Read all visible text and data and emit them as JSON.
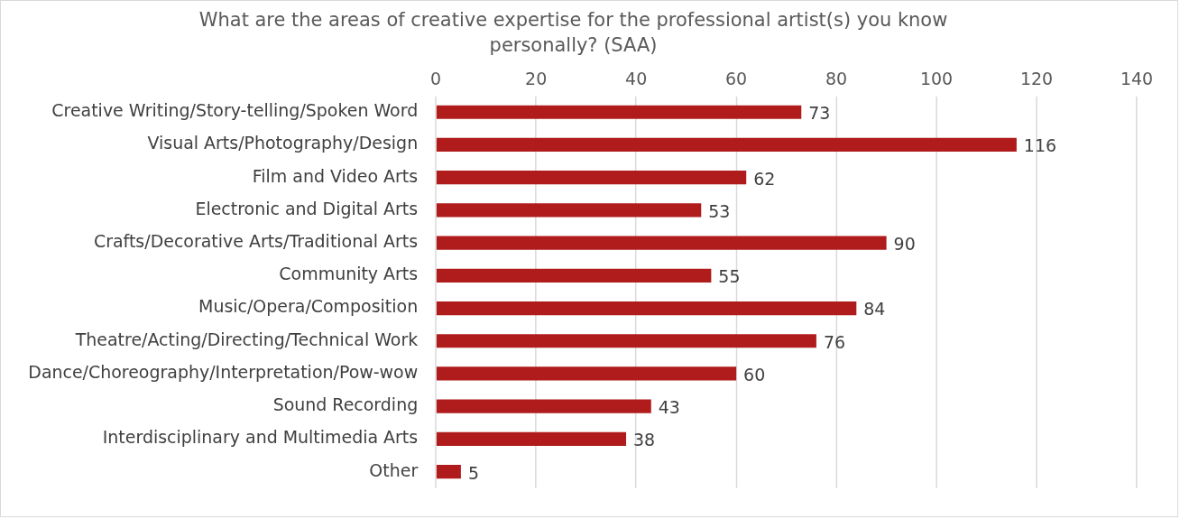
{
  "chart_data": {
    "type": "bar",
    "orientation": "horizontal",
    "title": "What are the areas of creative expertise for the professional artist(s) you know personally? (SAA)",
    "categories": [
      "Creative Writing/Story-telling/Spoken Word",
      "Visual Arts/Photography/Design",
      "Film and Video Arts",
      "Electronic and Digital Arts",
      "Crafts/Decorative Arts/Traditional Arts",
      "Community Arts",
      "Music/Opera/Composition",
      "Theatre/Acting/Directing/Technical Work",
      "Dance/Choreography/Interpretation/Pow-wow",
      "Sound Recording",
      "Interdisciplinary and Multimedia Arts",
      "Other"
    ],
    "values": [
      73,
      116,
      62,
      53,
      90,
      55,
      84,
      76,
      60,
      43,
      38,
      5
    ],
    "color": "#b01c1c",
    "xlim": [
      0,
      140
    ],
    "xticks": [
      0,
      20,
      40,
      60,
      80,
      100,
      120,
      140
    ],
    "grid": "x",
    "legend": false,
    "data_labels": true
  }
}
